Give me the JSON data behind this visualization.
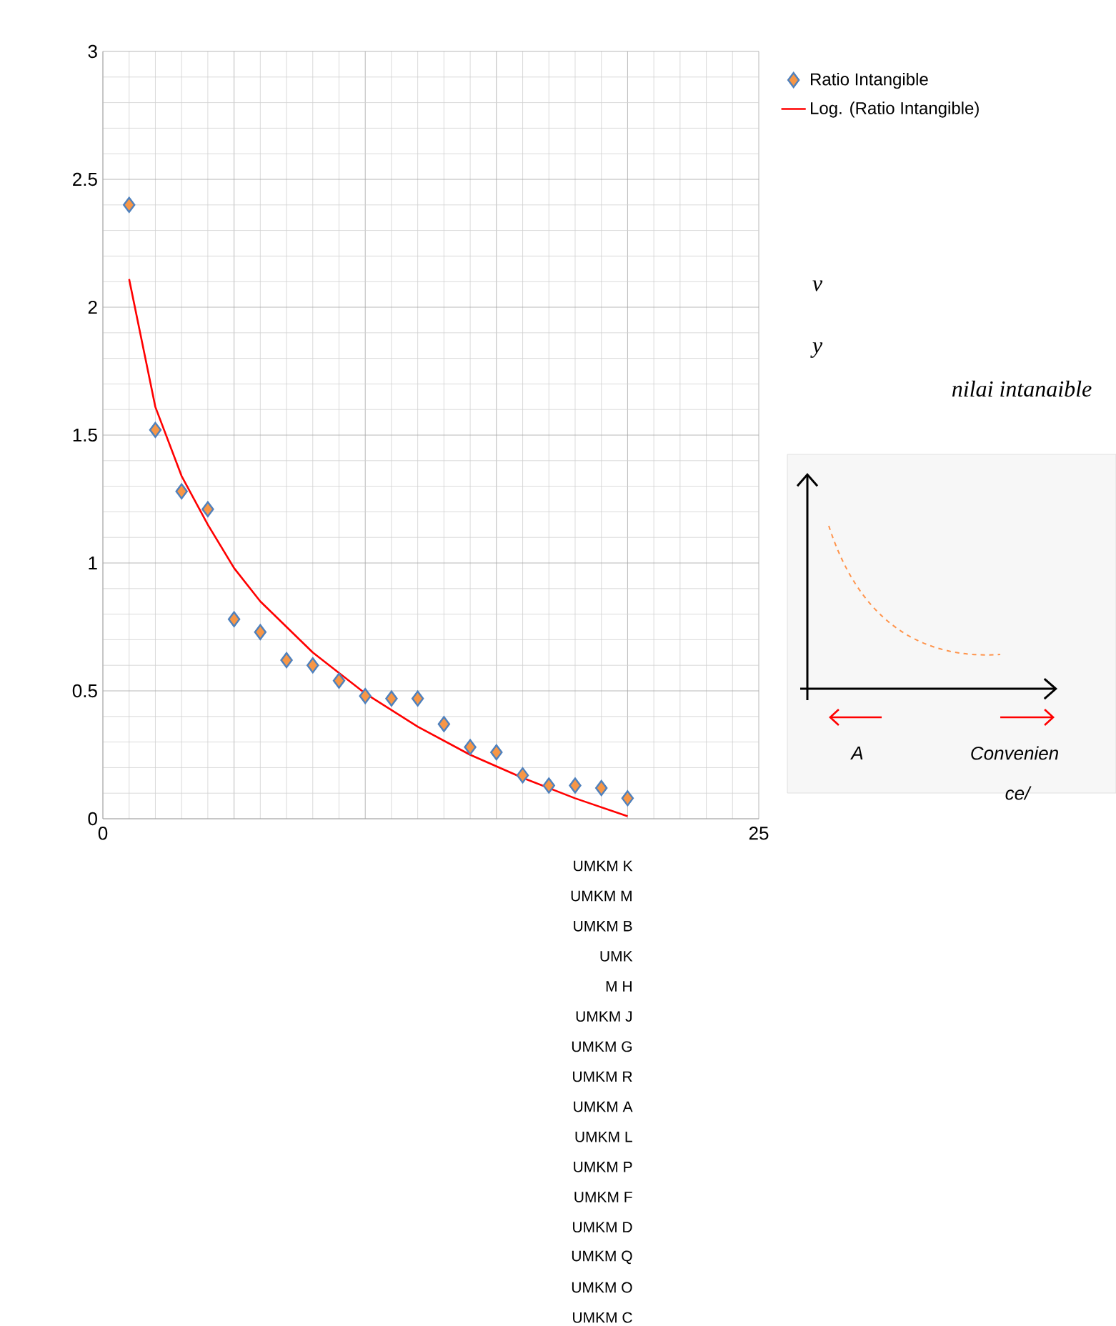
{
  "chart_data": {
    "type": "scatter",
    "series": [
      {
        "name": "Ratio Intangible",
        "marker": "diamond",
        "color": "#f79646",
        "x": [
          1,
          2,
          3,
          4,
          5,
          6,
          7,
          8,
          9,
          10,
          11,
          12,
          13,
          14,
          15,
          16,
          17,
          18,
          19,
          20
        ],
        "values": [
          2.4,
          1.52,
          1.28,
          1.21,
          0.78,
          0.73,
          0.62,
          0.6,
          0.54,
          0.48,
          0.47,
          0.47,
          0.37,
          0.28,
          0.26,
          0.17,
          0.13,
          0.13,
          0.12,
          0.08
        ]
      },
      {
        "name": "Log. (Ratio Intangible)",
        "type": "line",
        "marker": "none",
        "color": "#ff0000",
        "x": [
          1,
          2,
          3,
          4,
          5,
          6,
          8,
          10,
          12,
          14,
          16,
          18,
          20
        ],
        "values": [
          2.11,
          1.61,
          1.34,
          1.15,
          0.98,
          0.85,
          0.65,
          0.49,
          0.36,
          0.25,
          0.16,
          0.08,
          0.01
        ]
      }
    ],
    "xlim": [
      0,
      25
    ],
    "ylim": [
      0,
      3
    ],
    "xticks": [
      0,
      {
        "value": 5,
        "label": null
      },
      {
        "value": 10,
        "label": null
      },
      {
        "value": 15,
        "label": null
      },
      {
        "value": 20,
        "label": null
      },
      25
    ],
    "yticks": [
      0,
      0.5,
      1,
      1.5,
      2,
      2.5,
      3
    ],
    "grid": true,
    "legend": "top right",
    "annotations": [
      "v",
      "y",
      "nilai intanaible",
      "A",
      "Convenien",
      "ce/",
      "UMKM K",
      "UMKM M",
      "UMKM B",
      "UMK",
      "M H",
      "UMKM J",
      "UMKM G",
      "UMKM R",
      "UMKM A",
      "UMKM L",
      "UMKM P",
      "UMKM F",
      "UMKM D",
      "UMKM Q",
      "UMKM O",
      "UMKM C"
    ]
  }
}
